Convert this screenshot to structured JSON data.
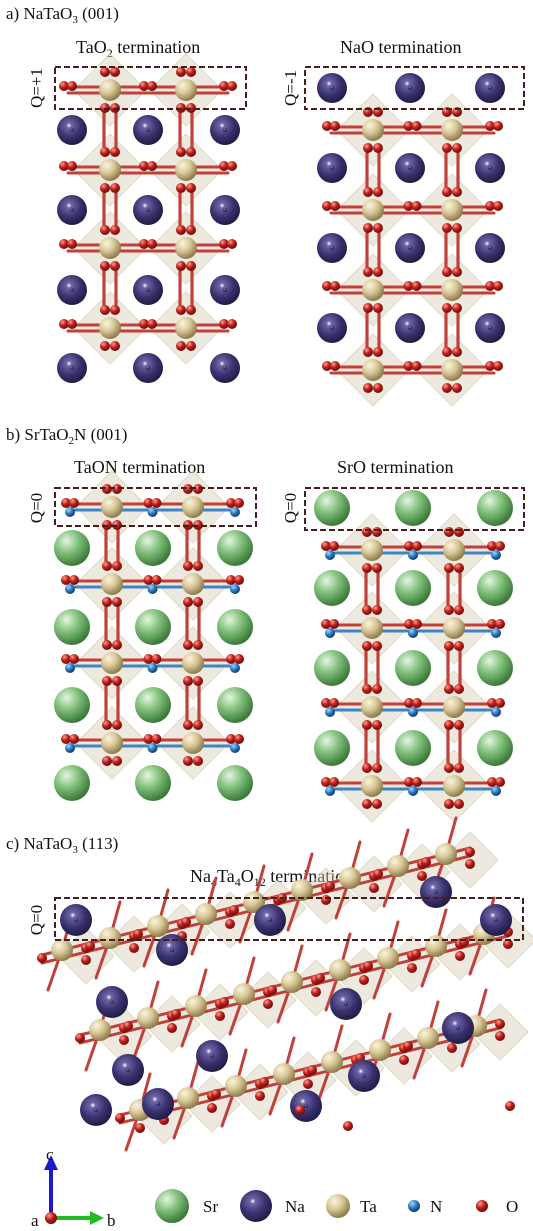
{
  "panels": {
    "a": {
      "label": "a) NaTaO",
      "label_sub": "3",
      "label_tail": " (001)",
      "left_title": "TaO",
      "left_title_sub": "2",
      "left_title_tail": " termination",
      "right_title": "NaO termination",
      "left_charge": "Q=+1",
      "right_charge": "Q=-1"
    },
    "b": {
      "label": "b) SrTaO",
      "label_sub": "2",
      "label_tail": "N (001)",
      "left_title": "TaON termination",
      "right_title": "SrO termination",
      "left_charge": "Q=0",
      "right_charge": "Q=0"
    },
    "c": {
      "label": "c) NaTaO",
      "label_sub": "3",
      "label_tail": " (113)",
      "title_parts": [
        "Na",
        "4",
        "Ta",
        "4",
        "O",
        "12",
        " termination"
      ],
      "charge": "Q=0"
    }
  },
  "axes": {
    "c": "c",
    "a": "a",
    "b": "b"
  },
  "legend": [
    {
      "symbol": "Sr",
      "color": "#79b874"
    },
    {
      "symbol": "Na",
      "color": "#3c3470"
    },
    {
      "symbol": "Ta",
      "color": "#d9c99b"
    },
    {
      "symbol": "N",
      "color": "#2a74b8"
    },
    {
      "symbol": "O",
      "color": "#b81c1c"
    }
  ],
  "colors": {
    "Sr": "#79b874",
    "Na": "#3c3470",
    "Ta": "#d9c99b",
    "N": "#2a74b8",
    "O": "#b81c1c",
    "bond_O": "#c0403a",
    "bond_N": "#3a86c8",
    "octahedra": "#d8cfb8",
    "box": "#4a1c1c"
  }
}
